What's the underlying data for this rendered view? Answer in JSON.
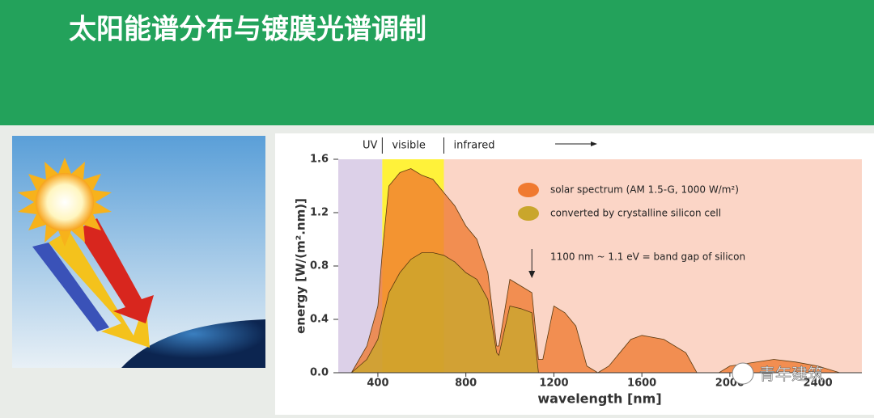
{
  "title": "太阳能谱分布与镀膜光谱调制",
  "watermark": "青年建筑",
  "chart_data": {
    "type": "area",
    "xlabel": "wavelength [nm]",
    "ylabel": "energy [W/(m².nm)]",
    "regions": [
      {
        "label": "UV",
        "from": 220,
        "to": 420,
        "color": "#dcd0e8"
      },
      {
        "label": "visible",
        "from": 420,
        "to": 700,
        "color": "#fff23a"
      },
      {
        "label": "infrared",
        "from": 700,
        "to": 2600,
        "color": "#fbd5c6"
      }
    ],
    "annotation": {
      "text": "1100 nm ~ 1.1 eV =  band gap of silicon",
      "x": 1100
    },
    "x": [
      280,
      350,
      400,
      420,
      450,
      500,
      550,
      600,
      650,
      700,
      750,
      800,
      850,
      900,
      940,
      950,
      1000,
      1050,
      1100,
      1130,
      1150,
      1200,
      1250,
      1300,
      1350,
      1400,
      1450,
      1550,
      1600,
      1700,
      1800,
      1850,
      1950,
      2000,
      2200,
      2300,
      2400,
      2500
    ],
    "series": [
      {
        "name": "solar spectrum (AM 1.5-G, 1000 W/m²)",
        "color": "#f07a30",
        "values": [
          0,
          0.2,
          0.5,
          0.9,
          1.4,
          1.5,
          1.53,
          1.48,
          1.45,
          1.35,
          1.25,
          1.1,
          1.0,
          0.75,
          0.2,
          0.2,
          0.7,
          0.65,
          0.6,
          0.1,
          0.1,
          0.5,
          0.45,
          0.35,
          0.05,
          0,
          0.05,
          0.25,
          0.28,
          0.25,
          0.15,
          0,
          0,
          0.05,
          0.1,
          0.08,
          0.05,
          0
        ]
      },
      {
        "name": "converted by crystalline silicon cell",
        "color": "#c9a62c",
        "values": [
          0,
          0.1,
          0.25,
          0.4,
          0.6,
          0.75,
          0.85,
          0.9,
          0.9,
          0.88,
          0.83,
          0.75,
          0.7,
          0.55,
          0.15,
          0.13,
          0.5,
          0.48,
          0.45,
          0,
          null,
          null,
          null,
          null,
          null,
          null,
          null,
          null,
          null,
          null,
          null,
          null,
          null,
          null,
          null,
          null,
          null,
          null
        ]
      }
    ],
    "xlim": [
      220,
      2600
    ],
    "xticks": [
      400,
      800,
      1200,
      1600,
      2000,
      2400
    ],
    "ylim": [
      0,
      1.6
    ],
    "yticks": [
      {
        "value": 0,
        "label": "0.0"
      },
      0.4,
      0.8,
      1.2,
      1.6
    ]
  }
}
